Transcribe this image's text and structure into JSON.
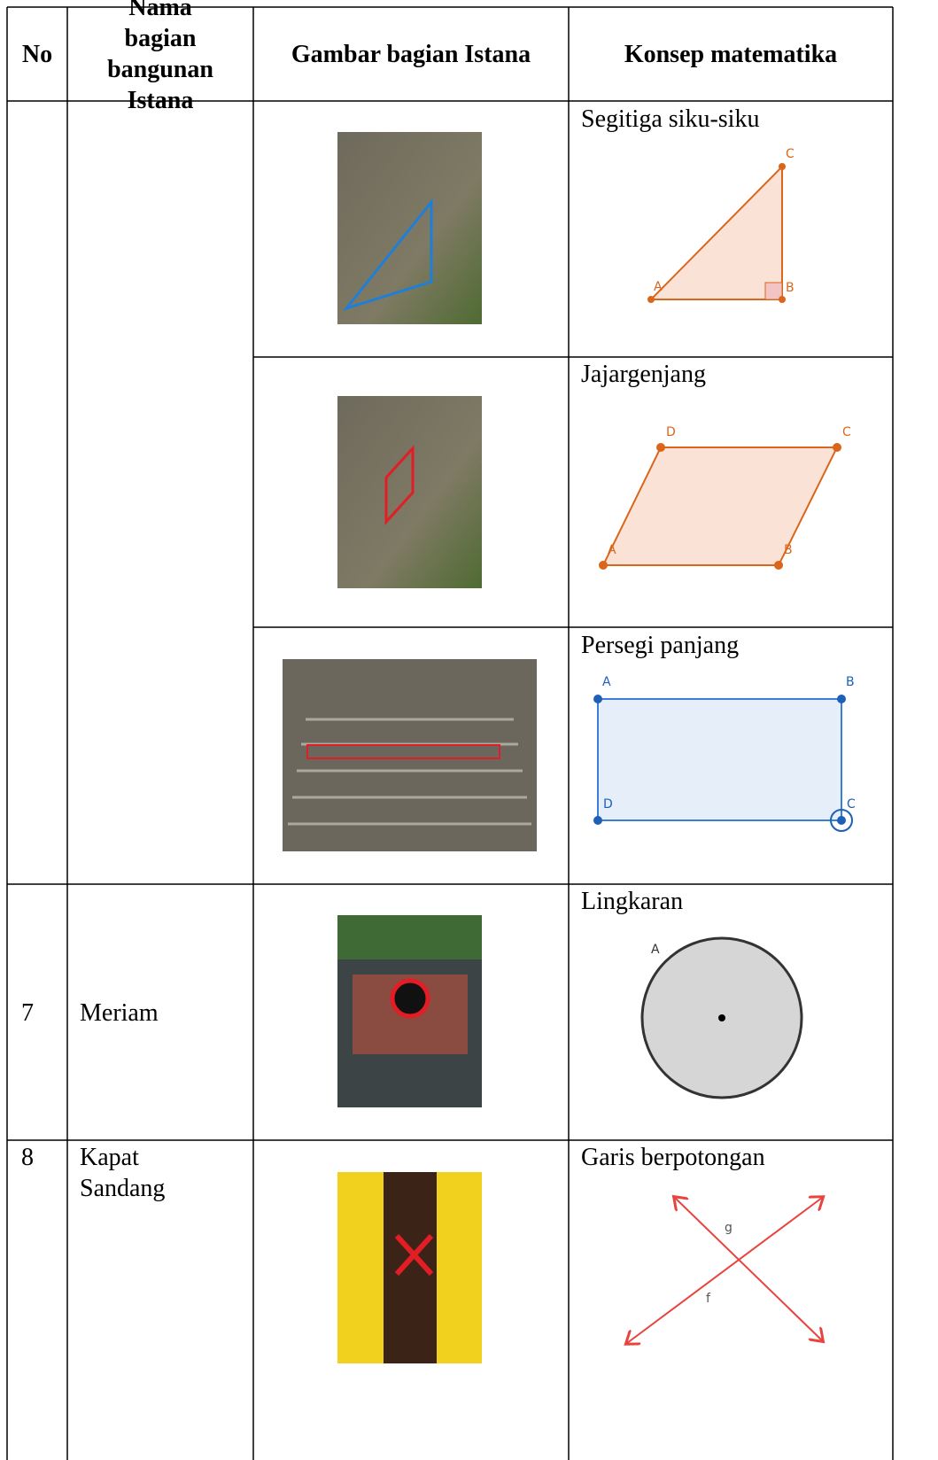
{
  "table": {
    "headers": [
      "No",
      "Nama bagian bangunan Istana",
      "Gambar bagian Istana",
      "Konsep matematika"
    ],
    "rows": [
      {
        "concept": "Segitiga siku-siku",
        "points": [
          "C",
          "A",
          "B"
        ]
      },
      {
        "concept": "Jajargenjang",
        "points": [
          "D",
          "C",
          "A",
          "B"
        ]
      },
      {
        "concept": "Persegi panjang",
        "points": [
          "A",
          "B",
          "D",
          "C"
        ]
      },
      {
        "no": "7",
        "name": "Meriam",
        "concept": "Lingkaran",
        "points": [
          "A"
        ]
      },
      {
        "no": "8",
        "name": "Kapat Sandang",
        "concept": "Garis berpotongan",
        "points": [
          "g",
          "f"
        ]
      }
    ]
  }
}
